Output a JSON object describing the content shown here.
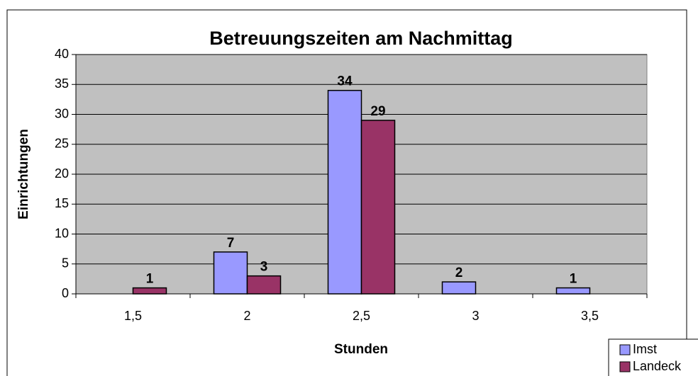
{
  "chart_data": {
    "type": "bar",
    "title": "Betreuungszeiten am Nachmittag",
    "x_label": "Stunden",
    "y_label": "Einrichtungen",
    "categories": [
      "1,5",
      "2",
      "2,5",
      "3",
      "3,5"
    ],
    "series": [
      {
        "name": "Imst",
        "color": "#9999ff",
        "values": [
          null,
          7,
          34,
          2,
          1
        ]
      },
      {
        "name": "Landeck",
        "color": "#993366",
        "values": [
          1,
          3,
          29,
          null,
          null
        ]
      }
    ],
    "ylim": [
      0,
      40
    ],
    "yticks": [
      0,
      5,
      10,
      15,
      20,
      25,
      30,
      35,
      40
    ],
    "grid": true,
    "legend": "bottom-right",
    "plot_background": "#c0c0c0"
  }
}
